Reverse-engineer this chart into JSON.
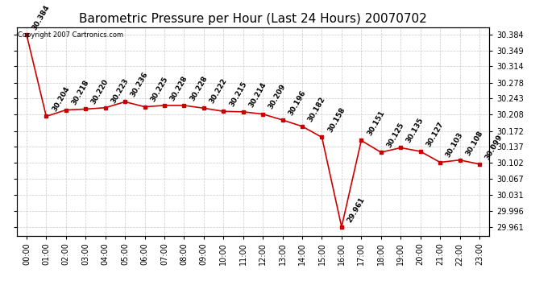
{
  "title": "Barometric Pressure per Hour (Last 24 Hours) 20070702",
  "copyright": "Copyright 2007 Cartronics.com",
  "hours": [
    "00:00",
    "01:00",
    "02:00",
    "03:00",
    "04:00",
    "05:00",
    "06:00",
    "07:00",
    "08:00",
    "09:00",
    "10:00",
    "11:00",
    "12:00",
    "13:00",
    "14:00",
    "15:00",
    "16:00",
    "17:00",
    "18:00",
    "19:00",
    "20:00",
    "21:00",
    "22:00",
    "23:00"
  ],
  "values": [
    30.384,
    30.204,
    30.218,
    30.22,
    30.223,
    30.236,
    30.225,
    30.228,
    30.228,
    30.222,
    30.215,
    30.214,
    30.209,
    30.196,
    30.182,
    30.158,
    29.961,
    30.151,
    30.125,
    30.135,
    30.127,
    30.103,
    30.108,
    30.099
  ],
  "line_color": "#cc0000",
  "marker_color": "#cc0000",
  "bg_color": "#ffffff",
  "plot_bg_color": "#ffffff",
  "grid_color": "#bbbbbb",
  "title_fontsize": 11,
  "label_fontsize": 6.5,
  "tick_fontsize": 7,
  "ytick_values": [
    29.961,
    29.996,
    30.031,
    30.067,
    30.102,
    30.137,
    30.172,
    30.208,
    30.243,
    30.278,
    30.314,
    30.349,
    30.384
  ],
  "ylim_min": 29.942,
  "ylim_max": 30.4
}
